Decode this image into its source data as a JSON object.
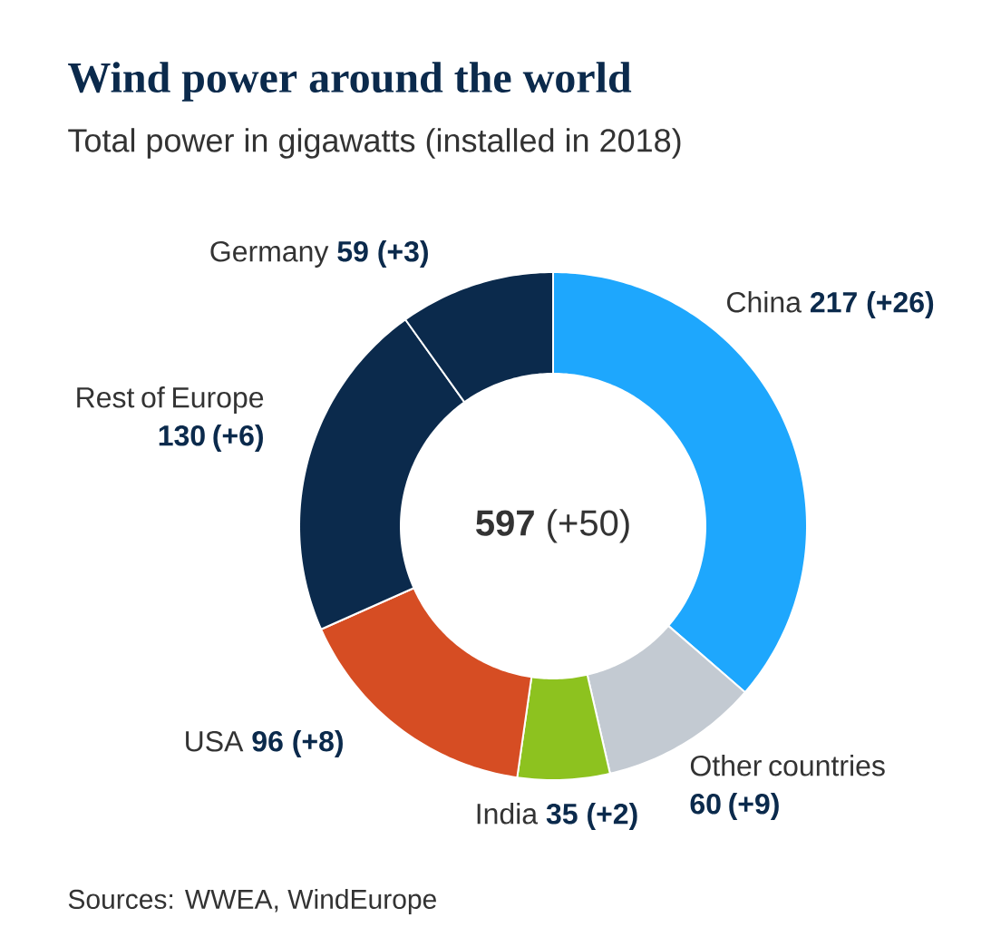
{
  "chart_data": {
    "type": "donut",
    "title": "Wind power around the world",
    "subtitle": "Total power in gigawatts (installed in 2018)",
    "categories": [
      "China",
      "Other countries",
      "India",
      "USA",
      "Rest of Europe",
      "Germany"
    ],
    "values": [
      217,
      60,
      35,
      96,
      130,
      59
    ],
    "colors": [
      "#1ea7fd",
      "#c3cad2",
      "#8dc21f",
      "#d64d23",
      "#0b2a4c",
      "#0b2a4c"
    ],
    "value_labels": [
      "**217** (+26)",
      "**60** (+9)",
      "**35** (+2)",
      "**96** (+8)",
      "**130** (+6)",
      "**59** (+3)"
    ],
    "annotations": [
      "**597** (+50)",
      "Sources: WWEA, WindEurope"
    ]
  }
}
